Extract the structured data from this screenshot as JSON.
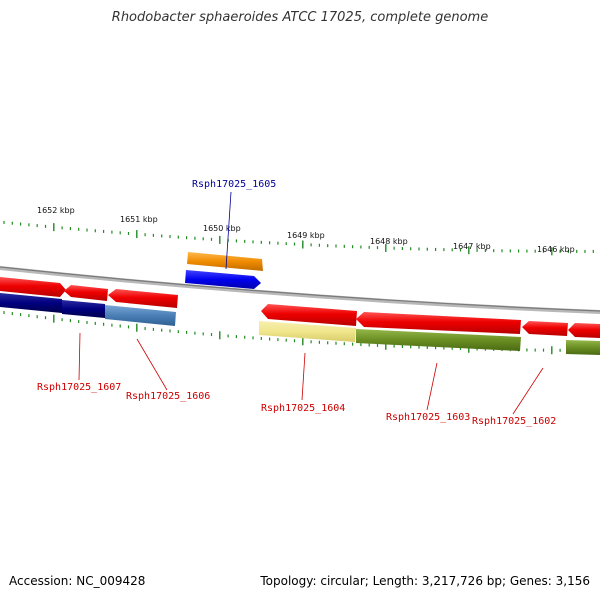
{
  "title": "Rhodobacter sphaeroides ATCC 17025, complete genome",
  "scale": {
    "labels": [
      "1652 kbp",
      "1651 kbp",
      "1650 kbp",
      "1649 kbp",
      "1648 kbp",
      "1647 kbp",
      "1646 kbp"
    ]
  },
  "genes": {
    "labeled": [
      {
        "name": "Rsph17025_1605",
        "color": "#000099"
      },
      {
        "name": "Rsph17025_1607",
        "color": "#cc0000"
      },
      {
        "name": "Rsph17025_1606",
        "color": "#cc0000"
      },
      {
        "name": "Rsph17025_1604",
        "color": "#cc0000"
      },
      {
        "name": "Rsph17025_1603",
        "color": "#cc0000"
      },
      {
        "name": "Rsph17025_1602",
        "color": "#cc0000"
      }
    ]
  },
  "colors": {
    "backbone": "#8a8a8a",
    "gene_red": "#ee0000",
    "gene_blue": "#0000ee",
    "gene_navy": "#000080",
    "gene_steelblue": "#4a7fb5",
    "gene_orange": "#f08c00",
    "gene_khaki": "#f0e68c",
    "gene_olive": "#6b8e23",
    "tick_green": "#228b22"
  },
  "footer": {
    "accession": "Accession: NC_009428",
    "stats": "Topology: circular; Length: 3,217,726 bp; Genes: 3,156"
  }
}
